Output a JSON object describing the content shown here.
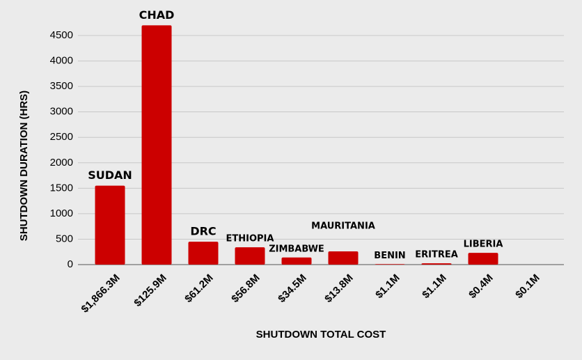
{
  "chart_data": {
    "type": "bar",
    "x_label": "SHUTDOWN TOTAL COST",
    "y_label": "SHUTDOWN DURATION (HRS)",
    "categories": [
      "$1,866.3M",
      "$125.9M",
      "$61.2M",
      "$56.8M",
      "$34.5M",
      "$13.8M",
      "$1.1M",
      "$1.1M",
      "$0.4M",
      "$0.1M"
    ],
    "values": [
      1550,
      4700,
      450,
      340,
      140,
      260,
      10,
      25,
      230,
      0
    ],
    "annotations": [
      "SUDAN",
      "CHAD",
      "DRC",
      "ETHIOPIA",
      "ZIMBABWE",
      "MAURITANIA",
      "BENIN",
      "ERITREA",
      "LIBERIA",
      null
    ],
    "color": "#cc0000",
    "ylim": [
      0,
      4700
    ],
    "yticks": [
      0,
      500,
      1000,
      1500,
      2000,
      2500,
      3000,
      3500,
      4000,
      4500
    ],
    "grid": true
  }
}
